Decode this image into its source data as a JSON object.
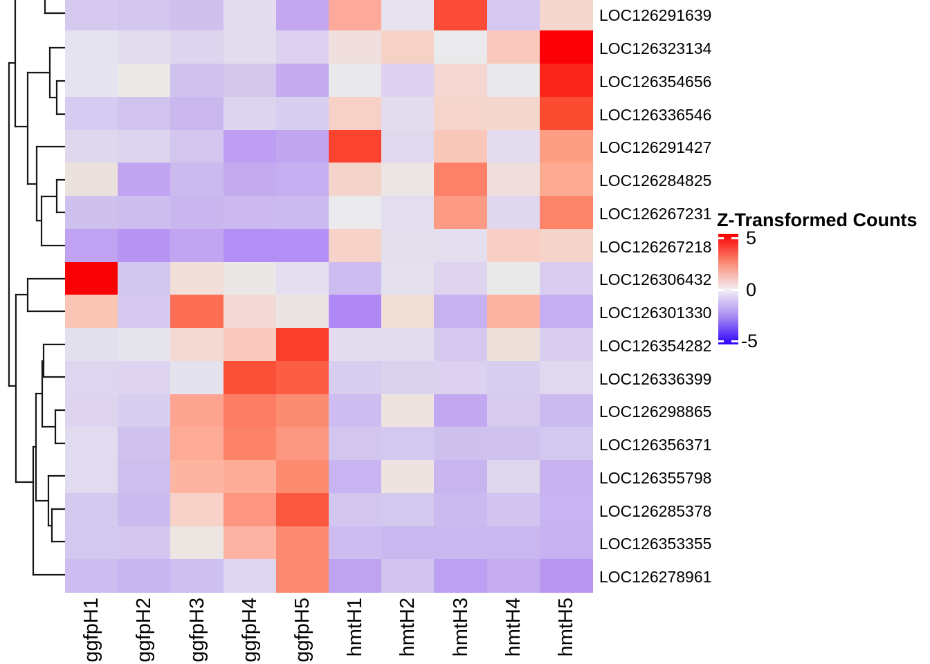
{
  "chart_data": {
    "type": "heatmap",
    "title": "",
    "legend_title": "Z-Transformed Counts",
    "legend_ticks": [
      {
        "label": "5",
        "value": 5
      },
      {
        "label": "0",
        "value": 0
      },
      {
        "label": "-5",
        "value": -5
      }
    ],
    "colorscale": {
      "min": -5,
      "max": 5,
      "palette": [
        "#0000ff",
        "#ffffff",
        "#ff0000"
      ]
    },
    "columns": [
      "ggfpH1",
      "ggfpH2",
      "ggfpH3",
      "ggfpH4",
      "ggfpH5",
      "hmtH1",
      "hmtH2",
      "hmtH3",
      "hmtH4",
      "hmtH5"
    ],
    "rows": [
      "LOC126291639",
      "LOC126323134",
      "LOC126354656",
      "LOC126336546",
      "LOC126291427",
      "LOC126284825",
      "LOC126267231",
      "LOC126267218",
      "LOC126306432",
      "LOC126301330",
      "LOC126354282",
      "LOC126336399",
      "LOC126298865",
      "LOC126356371",
      "LOC126355798",
      "LOC126285378",
      "LOC126353355",
      "LOC126278961"
    ],
    "z_estimates": [
      [
        -1.1,
        -1.1,
        -1.2,
        -0.7,
        -1.7,
        1.6,
        -0.5,
        3.5,
        -1.1,
        0.8
      ],
      [
        -0.5,
        -0.7,
        -0.8,
        -0.7,
        -0.9,
        0.6,
        0.9,
        -0.4,
        1.0,
        5.0
      ],
      [
        -0.5,
        -0.2,
        -1.2,
        -1.1,
        -1.6,
        -0.4,
        -0.9,
        0.8,
        -0.4,
        4.3
      ],
      [
        -1.0,
        -1.2,
        -1.4,
        -0.8,
        -0.9,
        0.9,
        -0.7,
        0.8,
        0.8,
        3.5
      ],
      [
        -0.8,
        -0.8,
        -1.1,
        -1.9,
        -1.7,
        3.7,
        -0.7,
        1.1,
        -0.7,
        1.9
      ],
      [
        0.5,
        -1.8,
        -1.3,
        -1.6,
        -1.5,
        0.8,
        0.3,
        2.5,
        0.6,
        1.6
      ],
      [
        -1.2,
        -1.3,
        -1.4,
        -1.3,
        -1.3,
        -0.4,
        -0.7,
        2.0,
        -0.8,
        2.4
      ],
      [
        -1.8,
        -2.1,
        -1.8,
        -2.2,
        -2.2,
        0.9,
        -0.6,
        -0.6,
        0.9,
        0.8
      ],
      [
        5.0,
        -1.1,
        0.6,
        0.1,
        -0.6,
        -1.3,
        -0.6,
        -0.8,
        -0.4,
        -1.0
      ],
      [
        1.1,
        -1.1,
        2.8,
        0.7,
        0.3,
        -2.3,
        0.6,
        -1.5,
        1.5,
        -1.6
      ],
      [
        -0.6,
        -0.5,
        0.8,
        1.1,
        3.8,
        -0.7,
        -0.7,
        -1.1,
        0.6,
        -1.0
      ],
      [
        -0.8,
        -0.8,
        -0.6,
        3.4,
        3.1,
        -1.0,
        -0.9,
        -0.9,
        -1.0,
        -0.8
      ],
      [
        -0.8,
        -1.0,
        1.8,
        2.5,
        2.2,
        -1.3,
        0.3,
        -1.7,
        -1.0,
        -1.3
      ],
      [
        -0.7,
        -1.2,
        1.6,
        2.4,
        2.0,
        -1.1,
        -1.1,
        -1.2,
        -1.2,
        -1.1
      ],
      [
        -0.7,
        -1.2,
        1.5,
        1.6,
        2.3,
        -1.5,
        0.3,
        -1.4,
        -0.8,
        -1.5
      ],
      [
        -1.1,
        -1.3,
        0.9,
        2.1,
        3.3,
        -1.1,
        -1.1,
        -1.4,
        -1.1,
        -1.5
      ],
      [
        -1.1,
        -1.1,
        0.2,
        1.5,
        2.3,
        -1.3,
        -1.4,
        -1.4,
        -1.4,
        -1.5
      ],
      [
        -1.3,
        -1.4,
        -1.3,
        -0.8,
        2.3,
        -1.8,
        -1.2,
        -1.9,
        -1.6,
        -2.1
      ]
    ],
    "cell_colors": [
      [
        "#d5c9f0",
        "#d2c6ef",
        "#cfc0ee",
        "#e2dcee",
        "#c3a8f0",
        "#fdaa9a",
        "#e6e3ee",
        "#fb4c37",
        "#d4c8f0",
        "#f5d6cc"
      ],
      [
        "#e6e3f1",
        "#e2ddee",
        "#ddd4ed",
        "#e2dcee",
        "#dcd2f0",
        "#f0dfdc",
        "#f6d2c6",
        "#eaeaec",
        "#fac9bd",
        "#fc0008"
      ],
      [
        "#e6e3f1",
        "#ebe8e8",
        "#d0c2ee",
        "#d3c8ec",
        "#c5abef",
        "#e9e9eb",
        "#ddd2ef",
        "#f4d7d1",
        "#e9e9eb",
        "#fb2419"
      ],
      [
        "#d6cbf0",
        "#d0c3ee",
        "#c9b7ee",
        "#ddd4ee",
        "#d8cff0",
        "#f7d1c8",
        "#e3dcee",
        "#f5d5cb",
        "#f4d6cd",
        "#fb4b31"
      ],
      [
        "#ded7ee",
        "#ddd5ee",
        "#d2c6ef",
        "#bd9ef2",
        "#c2a7f0",
        "#fb4330",
        "#e0d9ed",
        "#f9c8bb",
        "#e3dcee",
        "#fc9d84"
      ],
      [
        "#ece2dd",
        "#c0a4f1",
        "#cbbaee",
        "#c4abef",
        "#c6aff0",
        "#f4d4ca",
        "#ece5e4",
        "#fc8167",
        "#f0dedd",
        "#fdaa92"
      ],
      [
        "#cfc1ee",
        "#cdbeef",
        "#c9b6ef",
        "#ccbaef",
        "#cbbaef",
        "#eae9eb",
        "#e4dcef",
        "#fc9a83",
        "#ded7ee",
        "#fc8469"
      ],
      [
        "#bfa2f1",
        "#b796f3",
        "#c1a5f0",
        "#b38ef4",
        "#b48ff5",
        "#f6d2c8",
        "#e4dfed",
        "#e4dfee",
        "#f8cfc4",
        "#f5d3ca"
      ],
      [
        "#fa0105",
        "#d2c7ee",
        "#f2dfda",
        "#ebe7e6",
        "#e4dfee",
        "#cdbcf0",
        "#e4e0ed",
        "#ded4f0",
        "#eae9ea",
        "#d9ccf1"
      ],
      [
        "#fac5b4",
        "#d5c9f0",
        "#fc6e54",
        "#f3d9d6",
        "#ece4e2",
        "#b088f5",
        "#f0ded7",
        "#c7b2f0",
        "#fdb4a2",
        "#c6aff0"
      ],
      [
        "#e3e0ed",
        "#e6e4ec",
        "#f4d8d2",
        "#f9c9c0",
        "#fb3d2b",
        "#e2dcee",
        "#e1dcee",
        "#d5c9f0",
        "#eee1da",
        "#d9cef0"
      ],
      [
        "#ded6ee",
        "#ded4ef",
        "#e4e2ed",
        "#fb4f38",
        "#fb5e45",
        "#d7cdef",
        "#dbd3ee",
        "#dcd2ef",
        "#d7cdef",
        "#e0d8ee"
      ],
      [
        "#ded4f0",
        "#d8cef0",
        "#fda491",
        "#fc7d63",
        "#fc8c71",
        "#cdbdf0",
        "#ede4e0",
        "#c2a8f1",
        "#d6cbef",
        "#cbbaef"
      ],
      [
        "#e0dbee",
        "#cfc2ee",
        "#fdab96",
        "#fc8368",
        "#fc9781",
        "#d2c6ee",
        "#d3c9ee",
        "#cec1ee",
        "#cfc2ef",
        "#d3c8ef"
      ],
      [
        "#e0dbee",
        "#cdc0ef",
        "#fdb4a1",
        "#fdac98",
        "#fc8b70",
        "#c8b4f0",
        "#ede4e1",
        "#c8b5f0",
        "#ded6ed",
        "#c8b3f0"
      ],
      [
        "#d4c9ef",
        "#cbbcf0",
        "#f8d2c9",
        "#fc9680",
        "#fb5840",
        "#d2c6ef",
        "#d3c9ef",
        "#cbbaf0",
        "#d1c5ef",
        "#c8b4f0"
      ],
      [
        "#d3c8ef",
        "#d3c7f0",
        "#ece6e3",
        "#fdb3a3",
        "#fc8972",
        "#ccbcef",
        "#c9b7f0",
        "#c9b7ef",
        "#c9b7ef",
        "#c7b1f0"
      ],
      [
        "#cdbdf0",
        "#c8b6f0",
        "#cdbff0",
        "#ded7f0",
        "#fc8a70",
        "#bfa3f1",
        "#d0c4ef",
        "#bda0f1",
        "#c5adf0",
        "#ba96f3"
      ]
    ],
    "row_dendrogram_segments": [
      [
        65,
        0,
        65,
        19
      ],
      [
        65,
        19,
        94,
        19
      ],
      [
        22,
        0,
        22,
        183
      ],
      [
        22,
        183,
        40,
        183
      ],
      [
        13,
        91,
        22,
        91
      ],
      [
        13,
        91,
        13,
        558
      ],
      [
        13,
        558,
        23,
        558
      ],
      [
        40,
        105,
        40,
        266
      ],
      [
        40,
        105,
        72,
        105
      ],
      [
        40,
        266,
        53,
        266
      ],
      [
        72,
        69,
        94,
        69
      ],
      [
        72,
        69,
        72,
        141
      ],
      [
        72,
        141,
        82,
        141
      ],
      [
        82,
        117,
        94,
        117
      ],
      [
        82,
        117,
        82,
        165
      ],
      [
        82,
        165,
        94,
        165
      ],
      [
        53,
        212,
        94,
        212
      ],
      [
        53,
        212,
        53,
        319
      ],
      [
        53,
        319,
        60,
        319
      ],
      [
        60,
        284,
        60,
        355
      ],
      [
        60,
        284,
        82,
        284
      ],
      [
        60,
        355,
        94,
        355
      ],
      [
        82,
        260,
        94,
        260
      ],
      [
        82,
        260,
        82,
        307
      ],
      [
        82,
        307,
        94,
        307
      ],
      [
        40,
        403,
        94,
        403
      ],
      [
        40,
        403,
        40,
        450
      ],
      [
        40,
        450,
        94,
        450
      ],
      [
        23,
        426,
        40,
        426
      ],
      [
        23,
        426,
        23,
        697
      ],
      [
        23,
        697,
        48,
        697
      ],
      [
        48,
        646,
        48,
        831
      ],
      [
        48,
        646,
        52,
        646
      ],
      [
        48,
        831,
        94,
        831
      ],
      [
        52,
        569,
        52,
        724
      ],
      [
        52,
        569,
        61,
        569
      ],
      [
        52,
        724,
        70,
        724
      ],
      [
        61,
        522,
        61,
        617
      ],
      [
        61,
        522,
        63,
        522
      ],
      [
        61,
        617,
        80,
        617
      ],
      [
        63,
        498,
        94,
        498
      ],
      [
        63,
        498,
        63,
        545
      ],
      [
        63,
        545,
        94,
        545
      ],
      [
        80,
        593,
        94,
        593
      ],
      [
        80,
        593,
        80,
        641
      ],
      [
        80,
        641,
        94,
        641
      ],
      [
        70,
        688,
        94,
        688
      ],
      [
        70,
        688,
        70,
        760
      ],
      [
        70,
        760,
        75,
        760
      ],
      [
        75,
        736,
        94,
        736
      ],
      [
        75,
        736,
        75,
        783
      ],
      [
        75,
        783,
        94,
        783
      ]
    ]
  }
}
